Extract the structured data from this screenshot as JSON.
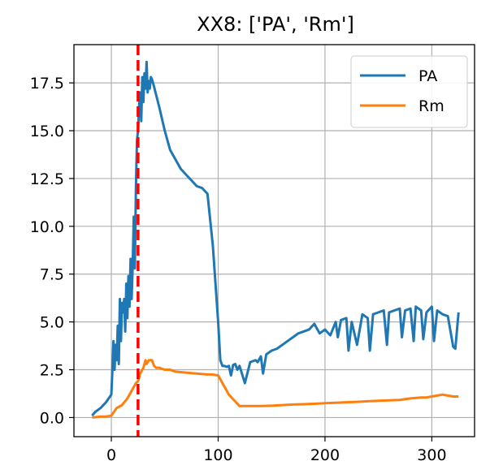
{
  "chart_data": {
    "type": "line",
    "title": "XX8: ['PA', 'Rm']",
    "xlabel": "",
    "ylabel": "",
    "xlim": [
      -35,
      340
    ],
    "ylim": [
      -1.0,
      19.5
    ],
    "xticks": [
      0,
      100,
      200,
      300
    ],
    "xtick_labels": [
      "0",
      "100",
      "200",
      "300"
    ],
    "yticks": [
      0.0,
      2.5,
      5.0,
      7.5,
      10.0,
      12.5,
      15.0,
      17.5
    ],
    "ytick_labels": [
      "0.0",
      "2.5",
      "5.0",
      "7.5",
      "10.0",
      "12.5",
      "15.0",
      "17.5"
    ],
    "grid": true,
    "legend_position": "top-right",
    "vline": {
      "x": 25,
      "color": "#ff0000",
      "style": "dashed"
    },
    "series": [
      {
        "name": "PA",
        "color": "#1f77b4",
        "x": [
          -18,
          -15,
          -10,
          -5,
          0,
          1,
          2,
          3,
          4,
          5,
          6,
          7,
          8,
          9,
          10,
          11,
          12,
          13,
          14,
          15,
          16,
          17,
          18,
          19,
          20,
          21,
          22,
          23,
          24,
          25,
          26,
          27,
          28,
          29,
          30,
          31,
          32,
          33,
          34,
          35,
          36,
          37,
          38,
          40,
          45,
          50,
          55,
          60,
          65,
          70,
          75,
          80,
          85,
          90,
          95,
          100,
          102,
          104,
          106,
          108,
          110,
          112,
          114,
          116,
          118,
          120,
          125,
          130,
          135,
          137,
          140,
          142,
          145,
          150,
          155,
          160,
          165,
          170,
          175,
          180,
          185,
          190,
          195,
          200,
          205,
          210,
          212,
          215,
          220,
          222,
          225,
          230,
          235,
          240,
          242,
          245,
          250,
          255,
          258,
          260,
          265,
          270,
          272,
          275,
          280,
          283,
          285,
          290,
          292,
          295,
          300,
          302,
          305,
          310,
          315,
          320,
          322,
          325
        ],
        "values": [
          0.1,
          0.3,
          0.5,
          0.8,
          1.2,
          2.5,
          4.0,
          2.5,
          3.8,
          3.0,
          4.8,
          2.8,
          6.2,
          4.0,
          6.0,
          5.5,
          6.2,
          4.5,
          7.0,
          5.2,
          7.4,
          5.8,
          8.3,
          6.2,
          8.0,
          10.5,
          7.8,
          12.0,
          14.5,
          15.0,
          16.3,
          17.0,
          15.5,
          17.8,
          16.5,
          18.0,
          17.2,
          18.6,
          17.0,
          17.6,
          17.2,
          17.8,
          17.7,
          17.3,
          16.2,
          15.0,
          14.0,
          13.5,
          13.0,
          12.7,
          12.4,
          12.1,
          12.0,
          11.7,
          9.0,
          5.0,
          3.0,
          2.7,
          2.7,
          2.65,
          2.7,
          2.2,
          2.75,
          2.8,
          2.5,
          2.7,
          1.8,
          2.9,
          3.0,
          2.9,
          3.2,
          2.3,
          3.3,
          3.5,
          3.6,
          3.8,
          4.0,
          4.2,
          4.4,
          4.5,
          4.6,
          4.9,
          4.4,
          4.6,
          4.3,
          5.0,
          4.2,
          5.1,
          5.2,
          3.5,
          5.0,
          3.8,
          5.4,
          5.2,
          3.5,
          5.4,
          5.5,
          5.6,
          3.8,
          5.5,
          5.6,
          5.7,
          4.2,
          5.6,
          5.7,
          4.0,
          5.8,
          5.6,
          4.1,
          5.5,
          5.8,
          4.0,
          5.6,
          5.4,
          5.3,
          3.7,
          3.6,
          5.5
        ],
        "legend_label": "PA"
      },
      {
        "name": "Rm",
        "color": "#ff7f0e",
        "x": [
          -18,
          -10,
          -5,
          0,
          5,
          10,
          15,
          20,
          23,
          25,
          27,
          30,
          32,
          33,
          35,
          38,
          40,
          42,
          45,
          50,
          55,
          60,
          70,
          80,
          90,
          95,
          100,
          105,
          110,
          115,
          120,
          130,
          140,
          150,
          160,
          170,
          180,
          190,
          200,
          210,
          220,
          230,
          240,
          250,
          260,
          270,
          280,
          290,
          295,
          300,
          305,
          310,
          315,
          320,
          325
        ],
        "values": [
          0.0,
          0.05,
          0.05,
          0.1,
          0.5,
          0.65,
          1.0,
          1.5,
          1.8,
          1.9,
          2.3,
          2.6,
          3.0,
          2.8,
          3.0,
          3.0,
          2.7,
          2.6,
          2.6,
          2.5,
          2.5,
          2.4,
          2.35,
          2.3,
          2.25,
          2.25,
          2.2,
          1.7,
          1.2,
          0.9,
          0.6,
          0.6,
          0.6,
          0.62,
          0.65,
          0.68,
          0.7,
          0.72,
          0.75,
          0.77,
          0.8,
          0.82,
          0.85,
          0.88,
          0.9,
          0.92,
          1.0,
          1.05,
          1.05,
          1.1,
          1.15,
          1.2,
          1.15,
          1.1,
          1.1
        ],
        "legend_label": "Rm"
      }
    ]
  }
}
